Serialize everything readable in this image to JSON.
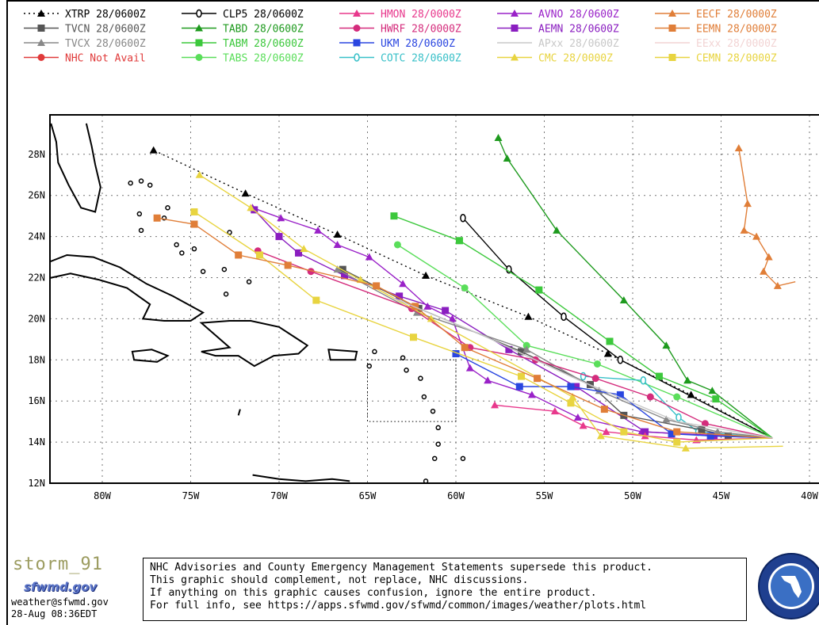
{
  "legend": [
    {
      "label": "XTRP",
      "run": "28/0600Z",
      "color": "#000000",
      "marker": "tri",
      "dash": "2,4"
    },
    {
      "label": "CLP5",
      "run": "28/0600Z",
      "color": "#000000",
      "marker": "zero",
      "dash": ""
    },
    {
      "label": "HMON",
      "run": "28/0000Z",
      "color": "#e8388c",
      "marker": "tri",
      "dash": ""
    },
    {
      "label": "AVNO",
      "run": "28/0600Z",
      "color": "#9a22c8",
      "marker": "tri",
      "dash": ""
    },
    {
      "label": "EECF",
      "run": "28/0000Z",
      "color": "#e07e38",
      "marker": "tri",
      "dash": ""
    },
    {
      "label": "TVCN",
      "run": "28/0600Z",
      "color": "#555555",
      "marker": "sq",
      "dash": ""
    },
    {
      "label": "TABD",
      "run": "28/0600Z",
      "color": "#1e9a1e",
      "marker": "tri",
      "dash": ""
    },
    {
      "label": "HWRF",
      "run": "28/0000Z",
      "color": "#d42c7c",
      "marker": "dot",
      "dash": ""
    },
    {
      "label": "AEMN",
      "run": "28/0600Z",
      "color": "#8a1ec0",
      "marker": "sq",
      "dash": ""
    },
    {
      "label": "EEMN",
      "run": "28/0000Z",
      "color": "#e07e38",
      "marker": "sq",
      "dash": ""
    },
    {
      "label": "TVCX",
      "run": "28/0600Z",
      "color": "#888888",
      "marker": "tri",
      "dash": ""
    },
    {
      "label": "TABM",
      "run": "28/0600Z",
      "color": "#3cc83c",
      "marker": "sq",
      "dash": ""
    },
    {
      "label": "UKM",
      "run": "28/0600Z",
      "color": "#2a46e0",
      "marker": "sq",
      "dash": ""
    },
    {
      "label": "APxx",
      "run": "28/0600Z",
      "color": "#c8c8c8",
      "marker": "none",
      "dash": ""
    },
    {
      "label": "EExx",
      "run": "28/0000Z",
      "color": "#f2d4d4",
      "marker": "none",
      "dash": ""
    },
    {
      "label": "NHC Not Avail",
      "run": "",
      "color": "#e03a3a",
      "marker": "dot",
      "dash": ""
    },
    {
      "label": "TABS",
      "run": "28/0600Z",
      "color": "#5ade5a",
      "marker": "dot",
      "dash": ""
    },
    {
      "label": "COTC",
      "run": "28/0600Z",
      "color": "#38c0c8",
      "marker": "zero",
      "dash": ""
    },
    {
      "label": "CMC",
      "run": "28/0000Z",
      "color": "#e8d440",
      "marker": "tri",
      "dash": ""
    },
    {
      "label": "CEMN",
      "run": "28/0000Z",
      "color": "#e8d440",
      "marker": "sq",
      "dash": ""
    }
  ],
  "chart_data": {
    "type": "map-track",
    "x_ticks": [
      "80W",
      "75W",
      "70W",
      "65W",
      "60W",
      "55W",
      "50W",
      "45W",
      "40W"
    ],
    "y_ticks": [
      "12N",
      "14N",
      "16N",
      "18N",
      "20N",
      "22N",
      "24N",
      "26N",
      "28N"
    ],
    "xlim": [
      -83,
      -40.5
    ],
    "ylim": [
      11.9,
      29.5
    ],
    "grid": true,
    "series": [
      {
        "name": "XTRP",
        "color": "#000000",
        "dash": "2,4",
        "marker": "tri",
        "points": [
          [
            -42.1,
            14.2
          ],
          [
            -46.7,
            16.3
          ],
          [
            -51.4,
            18.3
          ],
          [
            -55.9,
            20.1
          ],
          [
            -61.7,
            22.1
          ],
          [
            -66.7,
            24.1
          ],
          [
            -71.9,
            26.1
          ],
          [
            -77.1,
            28.2
          ]
        ]
      },
      {
        "name": "CLP5",
        "color": "#000000",
        "marker": "zero",
        "points": [
          [
            -42.1,
            14.2
          ],
          [
            -50.7,
            18.0
          ],
          [
            -53.9,
            20.1
          ],
          [
            -57.0,
            22.4
          ],
          [
            -59.6,
            24.9
          ]
        ]
      },
      {
        "name": "TABD",
        "color": "#1e9a1e",
        "marker": "tri",
        "points": [
          [
            -42.1,
            14.2
          ],
          [
            -45.5,
            16.5
          ],
          [
            -46.9,
            17.0
          ],
          [
            -48.1,
            18.7
          ],
          [
            -50.5,
            20.9
          ],
          [
            -54.3,
            24.3
          ],
          [
            -57.1,
            27.8
          ],
          [
            -57.6,
            28.8
          ]
        ]
      },
      {
        "name": "TABM",
        "color": "#3cc83c",
        "marker": "sq",
        "points": [
          [
            -42.1,
            14.2
          ],
          [
            -45.3,
            16.1
          ],
          [
            -48.5,
            17.2
          ],
          [
            -51.3,
            18.9
          ],
          [
            -55.3,
            21.4
          ],
          [
            -59.8,
            23.8
          ],
          [
            -63.5,
            25.0
          ]
        ]
      },
      {
        "name": "TABS",
        "color": "#5ade5a",
        "marker": "dot",
        "points": [
          [
            -42.1,
            14.2
          ],
          [
            -47.5,
            16.2
          ],
          [
            -52.0,
            17.8
          ],
          [
            -56.0,
            18.7
          ],
          [
            -59.5,
            21.5
          ],
          [
            -63.3,
            23.6
          ]
        ]
      },
      {
        "name": "COTC",
        "color": "#38c0c8",
        "marker": "zero",
        "points": [
          [
            -42.1,
            14.2
          ],
          [
            -46.3,
            14.5
          ],
          [
            -47.4,
            15.2
          ],
          [
            -49.4,
            17.0
          ],
          [
            -52.8,
            17.2
          ]
        ]
      },
      {
        "name": "AVNO",
        "color": "#9a22c8",
        "marker": "tri",
        "points": [
          [
            -42.1,
            14.2
          ],
          [
            -49.5,
            14.5
          ],
          [
            -53.1,
            15.2
          ],
          [
            -55.7,
            16.3
          ],
          [
            -58.2,
            17.0
          ],
          [
            -59.2,
            17.6
          ],
          [
            -60.2,
            20.0
          ],
          [
            -61.6,
            20.6
          ],
          [
            -63.0,
            21.7
          ],
          [
            -64.9,
            23.0
          ],
          [
            -66.7,
            23.6
          ],
          [
            -67.8,
            24.3
          ],
          [
            -69.9,
            24.9
          ],
          [
            -71.5,
            25.4
          ]
        ]
      },
      {
        "name": "AEMN",
        "color": "#8a1ec0",
        "marker": "sq",
        "points": [
          [
            -42.1,
            14.2
          ],
          [
            -45.4,
            14.3
          ],
          [
            -49.3,
            14.5
          ],
          [
            -53.2,
            16.7
          ],
          [
            -57.0,
            18.5
          ],
          [
            -60.6,
            20.4
          ],
          [
            -63.2,
            21.1
          ],
          [
            -66.3,
            22.1
          ],
          [
            -68.9,
            23.2
          ],
          [
            -70.0,
            24.0
          ],
          [
            -71.4,
            25.3
          ]
        ]
      },
      {
        "name": "TVCN",
        "color": "#555555",
        "marker": "sq",
        "points": [
          [
            -42.1,
            14.2
          ],
          [
            -44.6,
            14.3
          ],
          [
            -46.1,
            14.6
          ],
          [
            -50.5,
            15.3
          ],
          [
            -52.4,
            16.8
          ],
          [
            -56.3,
            18.4
          ],
          [
            -62.1,
            20.5
          ],
          [
            -66.4,
            22.4
          ]
        ]
      },
      {
        "name": "TVCX",
        "color": "#888888",
        "marker": "tri",
        "points": [
          [
            -42.1,
            14.2
          ],
          [
            -45.2,
            14.5
          ],
          [
            -48.1,
            15.1
          ],
          [
            -51.9,
            16.5
          ],
          [
            -56.0,
            18.5
          ],
          [
            -62.2,
            20.3
          ],
          [
            -66.7,
            22.4
          ]
        ]
      },
      {
        "name": "HMON",
        "color": "#e8388c",
        "marker": "tri",
        "points": [
          [
            -42.1,
            14.2
          ],
          [
            -46.4,
            14.1
          ],
          [
            -49.3,
            14.3
          ],
          [
            -51.5,
            14.5
          ],
          [
            -52.8,
            14.8
          ],
          [
            -54.4,
            15.5
          ],
          [
            -57.8,
            15.8
          ]
        ]
      },
      {
        "name": "HWRF",
        "color": "#d42c7c",
        "marker": "dot",
        "points": [
          [
            -42.1,
            14.2
          ],
          [
            -45.9,
            14.9
          ],
          [
            -49.0,
            16.2
          ],
          [
            -52.1,
            17.1
          ],
          [
            -55.5,
            18.0
          ],
          [
            -59.2,
            18.6
          ],
          [
            -62.5,
            20.5
          ],
          [
            -68.2,
            22.3
          ],
          [
            -71.2,
            23.3
          ]
        ]
      },
      {
        "name": "UKM",
        "color": "#2a46e0",
        "marker": "sq",
        "points": [
          [
            -42.1,
            14.2
          ],
          [
            -45.6,
            14.3
          ],
          [
            -47.8,
            14.4
          ],
          [
            -50.7,
            16.3
          ],
          [
            -53.5,
            16.7
          ],
          [
            -56.4,
            16.7
          ],
          [
            -60.0,
            18.3
          ]
        ]
      },
      {
        "name": "CMC",
        "color": "#e8d440",
        "marker": "tri",
        "points": [
          [
            -41.5,
            13.8
          ],
          [
            -47.0,
            13.7
          ],
          [
            -51.8,
            14.3
          ],
          [
            -53.4,
            16.2
          ],
          [
            -61.4,
            20.0
          ],
          [
            -65.4,
            21.9
          ],
          [
            -68.6,
            23.4
          ],
          [
            -71.6,
            25.4
          ],
          [
            -74.5,
            27.0
          ]
        ]
      },
      {
        "name": "CEMN",
        "color": "#e8d440",
        "marker": "sq",
        "points": [
          [
            -42.1,
            14.2
          ],
          [
            -47.5,
            14.0
          ],
          [
            -50.5,
            14.5
          ],
          [
            -53.5,
            15.9
          ],
          [
            -56.3,
            17.2
          ],
          [
            -62.4,
            19.1
          ],
          [
            -67.9,
            20.9
          ],
          [
            -71.1,
            23.1
          ],
          [
            -74.8,
            25.2
          ]
        ]
      },
      {
        "name": "EECF",
        "color": "#e07e38",
        "marker": "tri",
        "points": [
          [
            -40.8,
            21.8
          ],
          [
            -41.8,
            21.6
          ],
          [
            -42.6,
            22.3
          ],
          [
            -42.3,
            23.0
          ],
          [
            -43.0,
            24.0
          ],
          [
            -43.7,
            24.3
          ],
          [
            -43.5,
            25.6
          ],
          [
            -44.0,
            28.3
          ]
        ]
      },
      {
        "name": "EEMN",
        "color": "#e07e38",
        "marker": "sq",
        "points": [
          [
            -42.1,
            14.2
          ],
          [
            -47.5,
            14.5
          ],
          [
            -51.6,
            15.6
          ],
          [
            -55.4,
            17.1
          ],
          [
            -59.5,
            18.6
          ],
          [
            -62.3,
            20.6
          ],
          [
            -64.5,
            21.6
          ],
          [
            -69.5,
            22.6
          ],
          [
            -72.3,
            23.1
          ],
          [
            -74.8,
            24.6
          ],
          [
            -76.9,
            24.9
          ]
        ]
      },
      {
        "name": "APxx",
        "color": "#c8c8c8",
        "marker": "none",
        "points": [
          [
            -42.1,
            14.2
          ],
          [
            -47.5,
            15.0
          ],
          [
            -53.0,
            17.0
          ],
          [
            -58.5,
            19.2
          ],
          [
            -63.5,
            21.0
          ]
        ]
      }
    ]
  },
  "footer": {
    "storm_id": "storm_91",
    "site_logo": "sfwmd.gov",
    "email": "weather@sfwmd.gov",
    "timestamp": "28-Aug 08:36EDT",
    "disclaimer_lines": [
      "NHC Advisories and County Emergency Management Statements supersede this product.",
      "This graphic should complement, not replace, NHC discussions.",
      "If anything on this graphic causes confusion, ignore the entire product.",
      "For full info, see  https://apps.sfwmd.gov/sfwmd/common/images/weather/plots.html"
    ]
  }
}
